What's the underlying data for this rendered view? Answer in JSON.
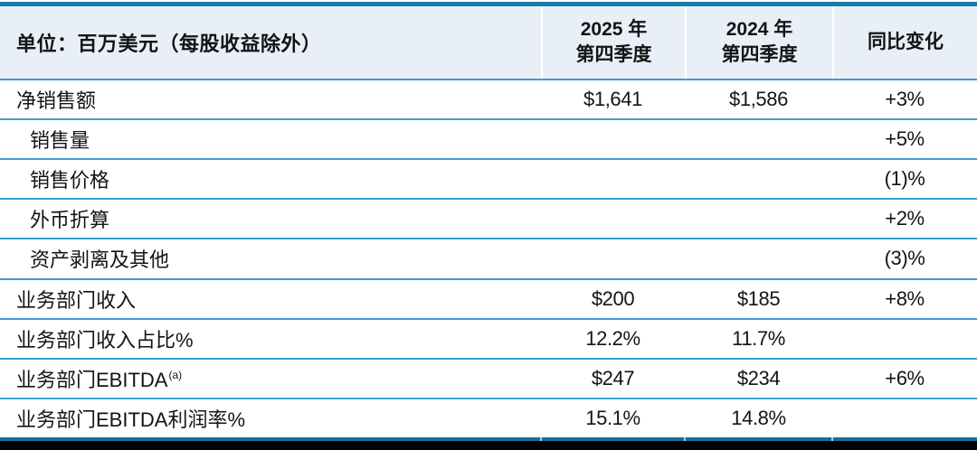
{
  "table": {
    "unit_header": "单位：百万美元（每股收益除外）",
    "columns": [
      {
        "line1": "2025 年",
        "line2": "第四季度"
      },
      {
        "line1": "2024 年",
        "line2": "第四季度"
      },
      {
        "line1": "同比变化",
        "line2": ""
      }
    ],
    "rows": [
      {
        "label": "净销售额",
        "q2025": "$1,641",
        "q2024": "$1,586",
        "yoy": "+3%"
      },
      {
        "label": "销售量",
        "q2025": "",
        "q2024": "",
        "yoy": "+5%"
      },
      {
        "label": "销售价格",
        "q2025": "",
        "q2024": "",
        "yoy": "(1)%"
      },
      {
        "label": "外币折算",
        "q2025": "",
        "q2024": "",
        "yoy": "+2%"
      },
      {
        "label": "资产剥离及其他",
        "q2025": "",
        "q2024": "",
        "yoy": "(3)%"
      },
      {
        "label": "业务部门收入",
        "q2025": "$200",
        "q2024": "$185",
        "yoy": "+8%"
      },
      {
        "label": "业务部门收入占比%",
        "q2025": "12.2%",
        "q2024": "11.7%",
        "yoy": ""
      },
      {
        "label": "业务部门EBITDA",
        "label_sup": "(a)",
        "q2025": "$247",
        "q2024": "$234",
        "yoy": "+6%"
      },
      {
        "label": "业务部门EBITDA利润率%",
        "q2025": "15.1%",
        "q2024": "14.8%",
        "yoy": ""
      }
    ],
    "colors": {
      "top_bar_blue": "#1b7aa9",
      "header_background": "#e9eff7",
      "row_divider_blue": "#3a9fd1",
      "bottom_line_blue": "#166f9e",
      "bottom_bar_black": "#000000"
    }
  }
}
